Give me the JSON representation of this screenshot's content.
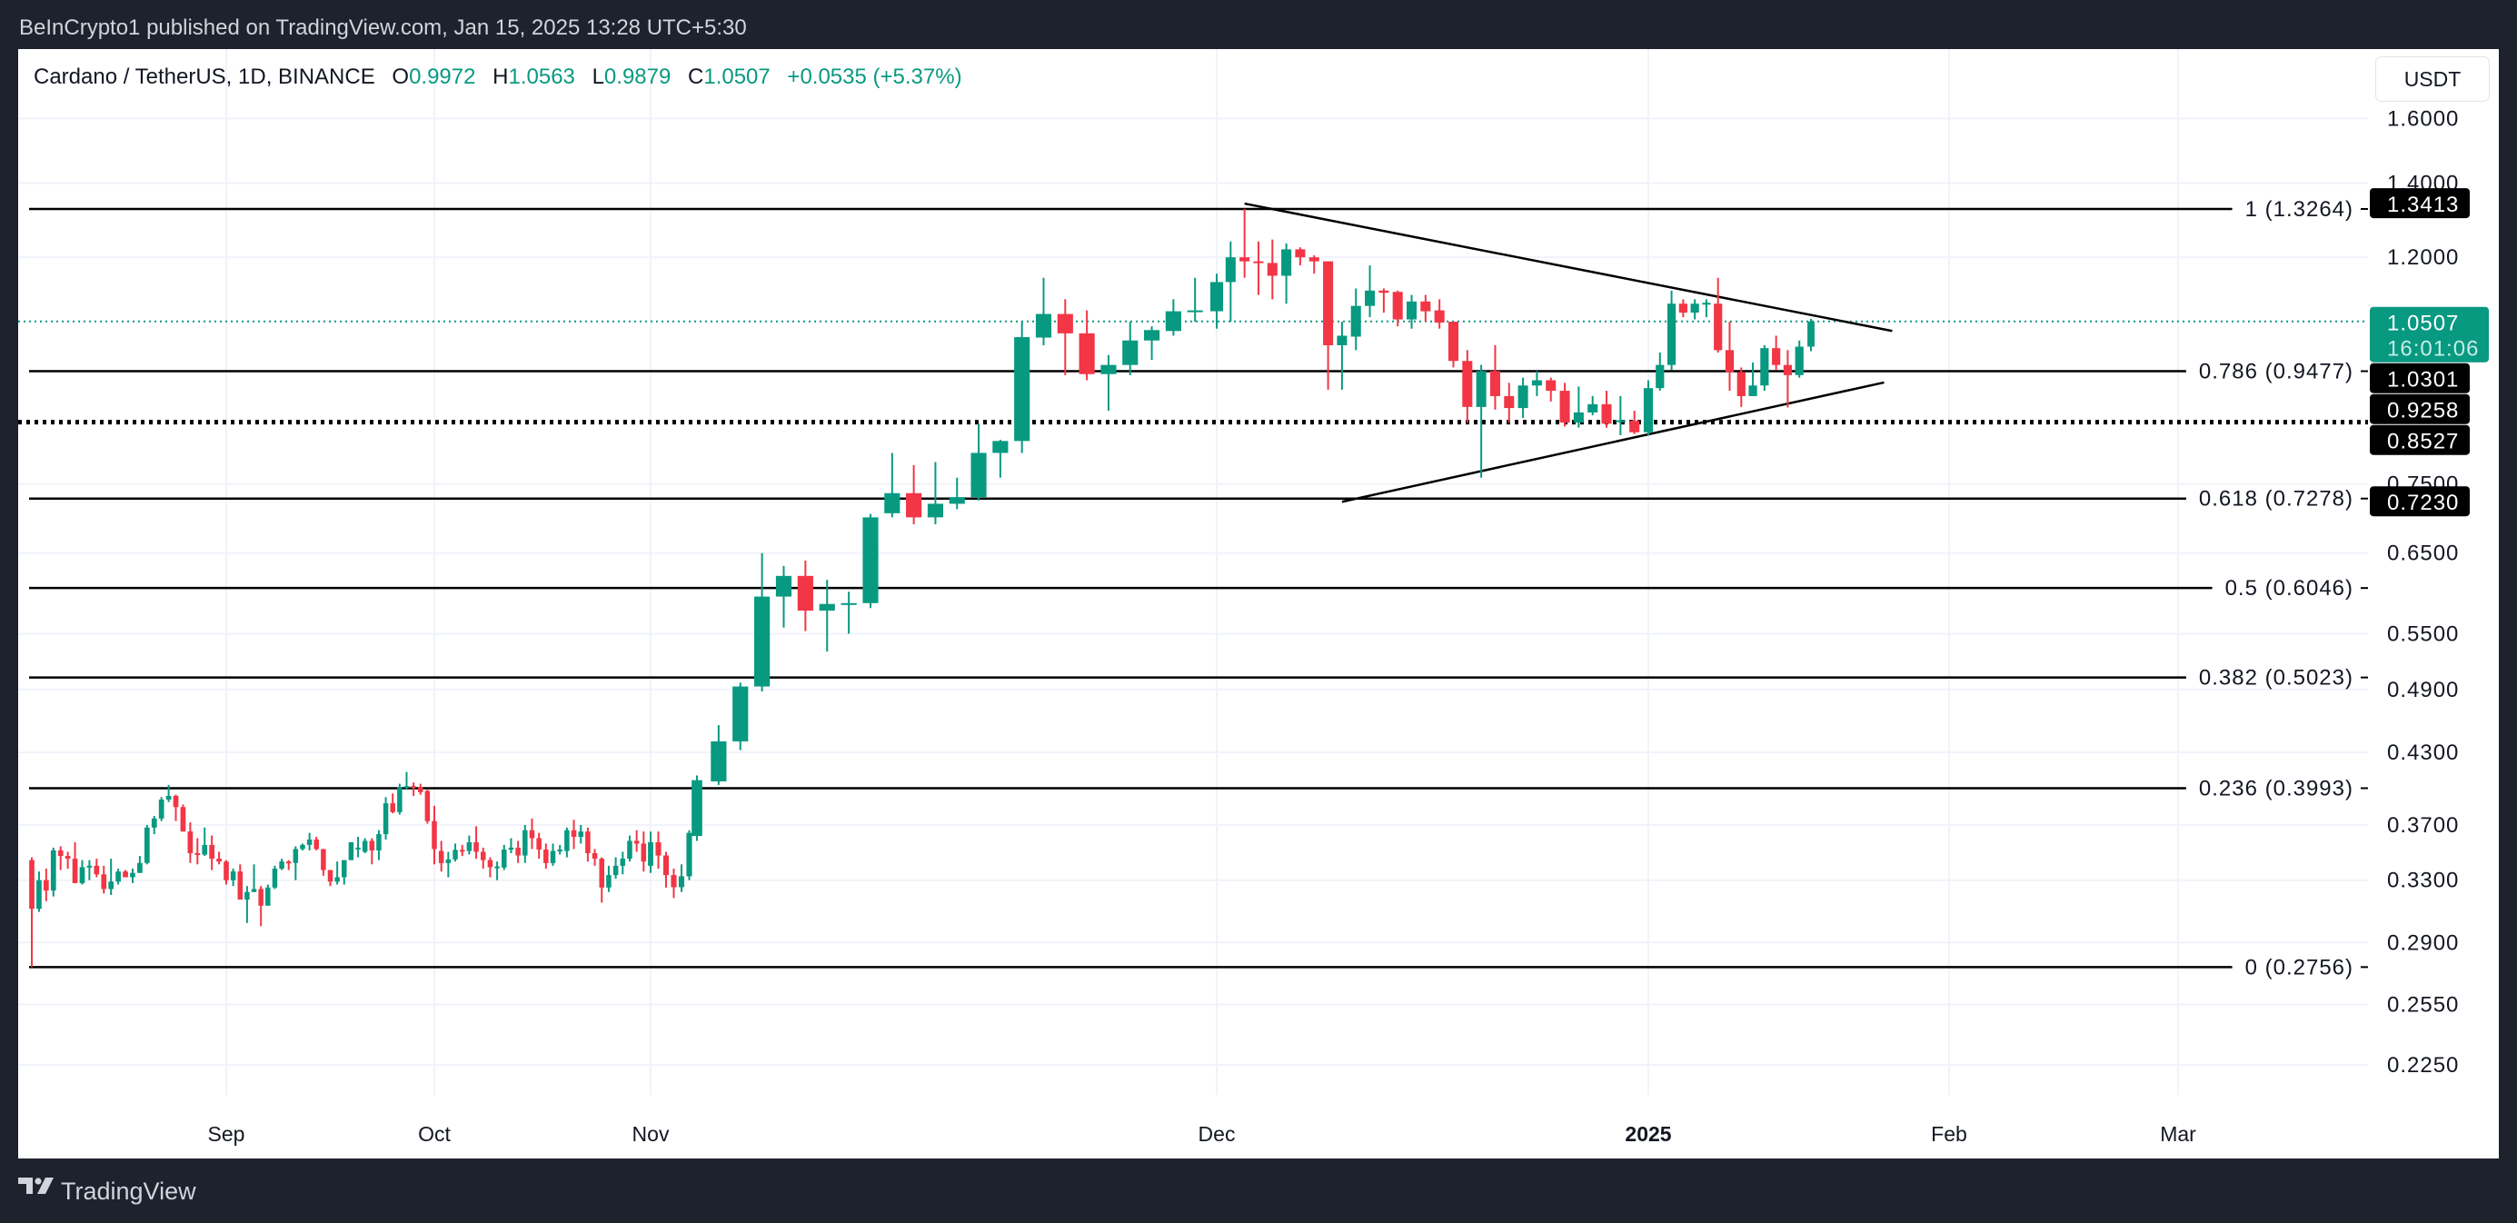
{
  "header": {
    "published": "BeInCrypto1 published on TradingView.com, Jan 15, 2025 13:28 UTC+5:30"
  },
  "legend": {
    "symbol": "Cardano / TetherUS, 1D, BINANCE",
    "o_label": "O",
    "o": "0.9972",
    "h_label": "H",
    "h": "1.0563",
    "l_label": "L",
    "l": "0.9879",
    "c_label": "C",
    "c": "1.0507",
    "change": "+0.0535 (+5.37%)"
  },
  "currency_button": "USDT",
  "footer": {
    "brand": "TradingView",
    "logo_icon": "tradingview-logo-icon"
  },
  "colors": {
    "up": "#089981",
    "down": "#F23645",
    "background": "#1e222d",
    "drawing": "#000000"
  },
  "chart_data": {
    "type": "candlestick",
    "interval": "1D",
    "y_scale": "log",
    "grid": true,
    "y_ticks": [
      "1.6000",
      "1.4000",
      "1.2000",
      "0.7500",
      "0.6500",
      "0.5500",
      "0.4900",
      "0.4300",
      "0.3700",
      "0.3300",
      "0.2900",
      "0.2550",
      "0.2250"
    ],
    "x_ticks": [
      {
        "label": "Sep",
        "date": "2024-09-01",
        "bold": false
      },
      {
        "label": "Oct",
        "date": "2024-10-01",
        "bold": false
      },
      {
        "label": "Nov",
        "date": "2024-11-01",
        "bold": false
      },
      {
        "label": "Dec",
        "date": "2024-12-01",
        "bold": false
      },
      {
        "label": "2025",
        "date": "2025-01-01",
        "bold": true
      },
      {
        "label": "Feb",
        "date": "2025-02-01",
        "bold": false
      },
      {
        "label": "Mar",
        "date": "2025-03-01",
        "bold": false
      }
    ],
    "candles_columns": [
      "date",
      "open",
      "high",
      "low",
      "close"
    ],
    "candles": [
      [
        "2024-08-05",
        0.344,
        0.346,
        0.2756,
        0.311
      ],
      [
        "2024-08-06",
        0.311,
        0.336,
        0.309,
        0.33
      ],
      [
        "2024-08-07",
        0.33,
        0.338,
        0.316,
        0.323
      ],
      [
        "2024-08-08",
        0.323,
        0.353,
        0.319,
        0.351
      ],
      [
        "2024-08-09",
        0.351,
        0.354,
        0.337,
        0.347
      ],
      [
        "2024-08-10",
        0.347,
        0.35,
        0.338,
        0.345
      ],
      [
        "2024-08-11",
        0.345,
        0.357,
        0.328,
        0.328
      ],
      [
        "2024-08-12",
        0.328,
        0.344,
        0.327,
        0.339
      ],
      [
        "2024-08-13",
        0.339,
        0.344,
        0.33,
        0.34
      ],
      [
        "2024-08-14",
        0.34,
        0.345,
        0.332,
        0.334
      ],
      [
        "2024-08-15",
        0.334,
        0.34,
        0.321,
        0.324
      ],
      [
        "2024-08-16",
        0.324,
        0.345,
        0.32,
        0.329
      ],
      [
        "2024-08-17",
        0.329,
        0.338,
        0.327,
        0.336
      ],
      [
        "2024-08-18",
        0.336,
        0.337,
        0.332,
        0.332
      ],
      [
        "2024-08-19",
        0.332,
        0.338,
        0.328,
        0.335
      ],
      [
        "2024-08-20",
        0.335,
        0.347,
        0.335,
        0.342
      ],
      [
        "2024-08-21",
        0.342,
        0.37,
        0.341,
        0.368
      ],
      [
        "2024-08-22",
        0.368,
        0.377,
        0.363,
        0.375
      ],
      [
        "2024-08-23",
        0.375,
        0.392,
        0.373,
        0.39
      ],
      [
        "2024-08-24",
        0.39,
        0.402,
        0.388,
        0.393
      ],
      [
        "2024-08-25",
        0.393,
        0.394,
        0.373,
        0.384
      ],
      [
        "2024-08-26",
        0.384,
        0.386,
        0.365,
        0.365
      ],
      [
        "2024-08-27",
        0.365,
        0.372,
        0.342,
        0.349
      ],
      [
        "2024-08-28",
        0.349,
        0.36,
        0.341,
        0.348
      ],
      [
        "2024-08-29",
        0.348,
        0.368,
        0.347,
        0.355
      ],
      [
        "2024-08-30",
        0.355,
        0.362,
        0.337,
        0.345
      ],
      [
        "2024-08-31",
        0.345,
        0.35,
        0.341,
        0.343
      ],
      [
        "2024-09-01",
        0.343,
        0.344,
        0.327,
        0.33
      ],
      [
        "2024-09-02",
        0.33,
        0.338,
        0.326,
        0.336
      ],
      [
        "2024-09-03",
        0.336,
        0.341,
        0.317,
        0.317
      ],
      [
        "2024-09-04",
        0.317,
        0.326,
        0.302,
        0.322
      ],
      [
        "2024-09-05",
        0.322,
        0.341,
        0.322,
        0.324
      ],
      [
        "2024-09-06",
        0.324,
        0.326,
        0.3,
        0.313
      ],
      [
        "2024-09-07",
        0.313,
        0.327,
        0.313,
        0.325
      ],
      [
        "2024-09-08",
        0.325,
        0.34,
        0.324,
        0.338
      ],
      [
        "2024-09-09",
        0.338,
        0.345,
        0.337,
        0.343
      ],
      [
        "2024-09-10",
        0.343,
        0.344,
        0.337,
        0.342
      ],
      [
        "2024-09-11",
        0.342,
        0.354,
        0.33,
        0.352
      ],
      [
        "2024-09-12",
        0.352,
        0.356,
        0.351,
        0.355
      ],
      [
        "2024-09-13",
        0.355,
        0.364,
        0.351,
        0.359
      ],
      [
        "2024-09-14",
        0.359,
        0.361,
        0.351,
        0.352
      ],
      [
        "2024-09-15",
        0.352,
        0.352,
        0.333,
        0.337
      ],
      [
        "2024-09-16",
        0.337,
        0.337,
        0.326,
        0.329
      ],
      [
        "2024-09-17",
        0.329,
        0.343,
        0.327,
        0.332
      ],
      [
        "2024-09-18",
        0.332,
        0.344,
        0.327,
        0.344
      ],
      [
        "2024-09-19",
        0.344,
        0.357,
        0.344,
        0.357
      ],
      [
        "2024-09-20",
        0.352,
        0.361,
        0.346,
        0.353
      ],
      [
        "2024-09-21",
        0.35,
        0.36,
        0.349,
        0.358
      ],
      [
        "2024-09-22",
        0.358,
        0.36,
        0.341,
        0.351
      ],
      [
        "2024-09-23",
        0.351,
        0.366,
        0.344,
        0.363
      ],
      [
        "2024-09-24",
        0.363,
        0.392,
        0.359,
        0.387
      ],
      [
        "2024-09-25",
        0.387,
        0.395,
        0.379,
        0.38
      ],
      [
        "2024-09-26",
        0.38,
        0.403,
        0.378,
        0.4
      ],
      [
        "2024-09-27",
        0.4,
        0.413,
        0.398,
        0.401
      ],
      [
        "2024-09-28",
        0.401,
        0.404,
        0.393,
        0.4
      ],
      [
        "2024-09-29",
        0.4,
        0.403,
        0.394,
        0.396
      ],
      [
        "2024-09-30",
        0.397,
        0.398,
        0.371,
        0.373
      ],
      [
        "2024-10-01",
        0.373,
        0.385,
        0.341,
        0.352
      ],
      [
        "2024-10-02",
        0.3506,
        0.358,
        0.336,
        0.3419
      ],
      [
        "2024-10-03",
        0.3419,
        0.35,
        0.332,
        0.3445
      ],
      [
        "2024-10-04",
        0.3445,
        0.356,
        0.343,
        0.3514
      ],
      [
        "2024-10-05",
        0.3514,
        0.355,
        0.347,
        0.3506
      ],
      [
        "2024-10-06",
        0.3506,
        0.362,
        0.348,
        0.357
      ],
      [
        "2024-10-07",
        0.357,
        0.369,
        0.345,
        0.35
      ],
      [
        "2024-10-08",
        0.35,
        0.353,
        0.338,
        0.344
      ],
      [
        "2024-10-09",
        0.344,
        0.346,
        0.332,
        0.339
      ],
      [
        "2024-10-10",
        0.339,
        0.343,
        0.33,
        0.3395
      ],
      [
        "2024-10-11",
        0.3387,
        0.355,
        0.337,
        0.3516
      ],
      [
        "2024-10-12",
        0.3516,
        0.36,
        0.349,
        0.353
      ],
      [
        "2024-10-13",
        0.353,
        0.358,
        0.342,
        0.3473
      ],
      [
        "2024-10-14",
        0.3473,
        0.37,
        0.342,
        0.366
      ],
      [
        "2024-10-15",
        0.366,
        0.375,
        0.352,
        0.36
      ],
      [
        "2024-10-16",
        0.36,
        0.364,
        0.345,
        0.3516
      ],
      [
        "2024-10-17",
        0.3516,
        0.356,
        0.338,
        0.3419
      ],
      [
        "2024-10-18",
        0.3419,
        0.356,
        0.34,
        0.3506
      ],
      [
        "2024-10-19",
        0.3506,
        0.355,
        0.348,
        0.3516
      ],
      [
        "2024-10-20",
        0.3506,
        0.368,
        0.346,
        0.366
      ],
      [
        "2024-10-21",
        0.366,
        0.374,
        0.352,
        0.361
      ],
      [
        "2024-10-22",
        0.361,
        0.37,
        0.356,
        0.365
      ],
      [
        "2024-10-23",
        0.365,
        0.368,
        0.343,
        0.349
      ],
      [
        "2024-10-24",
        0.349,
        0.352,
        0.34,
        0.345
      ],
      [
        "2024-10-25",
        0.345,
        0.346,
        0.315,
        0.325
      ],
      [
        "2024-10-26",
        0.325,
        0.34,
        0.322,
        0.3335
      ],
      [
        "2024-10-27",
        0.3335,
        0.346,
        0.331,
        0.34
      ],
      [
        "2024-10-28",
        0.34,
        0.35,
        0.334,
        0.345
      ],
      [
        "2024-10-29",
        0.345,
        0.362,
        0.343,
        0.358
      ],
      [
        "2024-10-30",
        0.358,
        0.366,
        0.35,
        0.356
      ],
      [
        "2024-10-31",
        0.356,
        0.365,
        0.336,
        0.343
      ],
      [
        "2024-11-01",
        0.34,
        0.365,
        0.335,
        0.357
      ],
      [
        "2024-11-02",
        0.357,
        0.365,
        0.338,
        0.3473
      ],
      [
        "2024-11-03",
        0.3473,
        0.35,
        0.325,
        0.3335
      ],
      [
        "2024-11-04",
        0.3335,
        0.338,
        0.318,
        0.3252
      ],
      [
        "2024-11-05",
        0.3252,
        0.341,
        0.322,
        0.3327
      ],
      [
        "2024-11-06",
        0.3327,
        0.366,
        0.33,
        0.364
      ],
      [
        "2024-11-07",
        0.3617,
        0.41,
        0.358,
        0.406
      ],
      [
        "2024-11-08",
        0.405,
        0.455,
        0.402,
        0.44
      ],
      [
        "2024-11-09",
        0.44,
        0.497,
        0.432,
        0.493
      ],
      [
        "2024-11-10",
        0.493,
        0.65,
        0.488,
        0.594
      ],
      [
        "2024-11-11",
        0.594,
        0.633,
        0.557,
        0.62
      ],
      [
        "2024-11-12",
        0.62,
        0.64,
        0.553,
        0.577
      ],
      [
        "2024-11-13",
        0.577,
        0.615,
        0.53,
        0.585
      ],
      [
        "2024-11-14",
        0.585,
        0.6,
        0.55,
        0.586
      ],
      [
        "2024-11-15",
        0.586,
        0.705,
        0.58,
        0.7
      ],
      [
        "2024-11-16",
        0.706,
        0.8,
        0.7,
        0.736
      ],
      [
        "2024-11-17",
        0.736,
        0.78,
        0.69,
        0.7
      ],
      [
        "2024-11-18",
        0.7,
        0.785,
        0.69,
        0.72
      ],
      [
        "2024-11-19",
        0.72,
        0.76,
        0.712,
        0.73
      ],
      [
        "2024-11-20",
        0.73,
        0.85,
        0.725,
        0.8
      ],
      [
        "2024-11-21",
        0.8,
        0.822,
        0.76,
        0.82
      ],
      [
        "2024-11-22",
        0.82,
        1.05,
        0.8,
        1.017
      ],
      [
        "2024-11-23",
        1.016,
        1.15,
        1.0,
        1.067
      ],
      [
        "2024-11-24",
        1.067,
        1.1,
        0.94,
        1.025
      ],
      [
        "2024-11-25",
        1.025,
        1.075,
        0.93,
        0.942
      ],
      [
        "2024-11-26",
        0.942,
        0.98,
        0.873,
        0.96
      ],
      [
        "2024-11-27",
        0.96,
        1.05,
        0.94,
        1.01
      ],
      [
        "2024-11-28",
        1.01,
        1.04,
        0.97,
        1.032
      ],
      [
        "2024-11-29",
        1.03,
        1.1,
        1.02,
        1.073
      ],
      [
        "2024-11-30",
        1.073,
        1.15,
        1.05,
        1.075
      ],
      [
        "2024-12-01",
        1.073,
        1.16,
        1.035,
        1.14
      ],
      [
        "2024-12-02",
        1.14,
        1.24,
        1.05,
        1.2
      ],
      [
        "2024-12-03",
        1.2,
        1.3264,
        1.15,
        1.19
      ],
      [
        "2024-12-04",
        1.19,
        1.24,
        1.11,
        1.188
      ],
      [
        "2024-12-05",
        1.186,
        1.245,
        1.1,
        1.155
      ],
      [
        "2024-12-06",
        1.155,
        1.235,
        1.09,
        1.22
      ],
      [
        "2024-12-07",
        1.22,
        1.225,
        1.18,
        1.2
      ],
      [
        "2024-12-08",
        1.2,
        1.205,
        1.16,
        1.19
      ],
      [
        "2024-12-09",
        1.19,
        1.19,
        0.912,
        1.0
      ],
      [
        "2024-12-10",
        1.0,
        1.05,
        0.912,
        1.02
      ],
      [
        "2024-12-11",
        1.018,
        1.125,
        0.99,
        1.085
      ],
      [
        "2024-12-12",
        1.085,
        1.18,
        1.06,
        1.12
      ],
      [
        "2024-12-13",
        1.12,
        1.125,
        1.07,
        1.115
      ],
      [
        "2024-12-14",
        1.117,
        1.12,
        1.04,
        1.055
      ],
      [
        "2024-12-15",
        1.055,
        1.11,
        1.035,
        1.095
      ],
      [
        "2024-12-16",
        1.095,
        1.11,
        1.05,
        1.073
      ],
      [
        "2024-12-17",
        1.075,
        1.1,
        1.035,
        1.048
      ],
      [
        "2024-12-18",
        1.05,
        1.05,
        0.955,
        0.968
      ],
      [
        "2024-12-19",
        0.968,
        0.99,
        0.852,
        0.88
      ],
      [
        "2024-12-20",
        0.88,
        0.96,
        0.76,
        0.948
      ],
      [
        "2024-12-21",
        0.948,
        1.0,
        0.875,
        0.9
      ],
      [
        "2024-12-22",
        0.9,
        0.925,
        0.852,
        0.878
      ],
      [
        "2024-12-23",
        0.878,
        0.935,
        0.86,
        0.92
      ],
      [
        "2024-12-24",
        0.92,
        0.948,
        0.9,
        0.93
      ],
      [
        "2024-12-25",
        0.93,
        0.935,
        0.89,
        0.91
      ],
      [
        "2024-12-26",
        0.91,
        0.925,
        0.845,
        0.852
      ],
      [
        "2024-12-27",
        0.852,
        0.918,
        0.843,
        0.87
      ],
      [
        "2024-12-28",
        0.87,
        0.9,
        0.865,
        0.885
      ],
      [
        "2024-12-29",
        0.885,
        0.91,
        0.843,
        0.85
      ],
      [
        "2024-12-30",
        0.854,
        0.9,
        0.83,
        0.856
      ],
      [
        "2024-12-31",
        0.855,
        0.873,
        0.832,
        0.835
      ],
      [
        "2025-01-01",
        0.835,
        0.93,
        0.83,
        0.915
      ],
      [
        "2025-01-02",
        0.915,
        0.985,
        0.91,
        0.96
      ],
      [
        "2025-01-03",
        0.96,
        1.12,
        0.95,
        1.09
      ],
      [
        "2025-01-04",
        1.09,
        1.1,
        1.06,
        1.07
      ],
      [
        "2025-01-05",
        1.07,
        1.1,
        1.055,
        1.09
      ],
      [
        "2025-01-06",
        1.09,
        1.1,
        1.06,
        1.092
      ],
      [
        "2025-01-07",
        1.09,
        1.15,
        0.985,
        0.99
      ],
      [
        "2025-01-08",
        0.99,
        1.05,
        0.91,
        0.946
      ],
      [
        "2025-01-09",
        0.946,
        0.955,
        0.88,
        0.9
      ],
      [
        "2025-01-10",
        0.9,
        0.965,
        0.9,
        0.92
      ],
      [
        "2025-01-11",
        0.92,
        1.0,
        0.91,
        0.994
      ],
      [
        "2025-01-12",
        0.994,
        1.02,
        0.95,
        0.96
      ],
      [
        "2025-01-13",
        0.96,
        0.99,
        0.879,
        0.94
      ],
      [
        "2025-01-14",
        0.94,
        1.01,
        0.935,
        0.9972
      ],
      [
        "2025-01-15",
        0.9972,
        1.0563,
        0.9879,
        1.0507
      ]
    ],
    "fib_levels": [
      {
        "label": "1 (1.3264)",
        "price": 1.3264
      },
      {
        "label": "0.786 (0.9477)",
        "price": 0.9477
      },
      {
        "label": "0.618 (0.7278)",
        "price": 0.7278
      },
      {
        "label": "0.5 (0.6046)",
        "price": 0.6046
      },
      {
        "label": "0.382 (0.5023)",
        "price": 0.5023
      },
      {
        "label": "0.236 (0.3993)",
        "price": 0.3993
      },
      {
        "label": "0 (0.2756)",
        "price": 0.2756
      }
    ],
    "horizontal_line": {
      "price": 0.8527,
      "style": "dotted"
    },
    "trendlines": [
      {
        "from": {
          "date": "2024-12-03",
          "price": 1.3413
        },
        "to": {
          "date": "2025-01-25",
          "price": 1.0301
        }
      },
      {
        "from": {
          "date": "2024-12-10",
          "price": 0.723
        },
        "to": {
          "date": "2025-01-24",
          "price": 0.9258
        }
      }
    ],
    "price_labels": [
      {
        "text": "1.3413",
        "price": 1.3413
      },
      {
        "text": "1.0301",
        "price": 1.0301
      },
      {
        "text": "0.9258",
        "price": 0.9258
      },
      {
        "text": "0.8527",
        "price": 0.8527
      },
      {
        "text": "0.7230",
        "price": 0.723
      }
    ],
    "last_price": {
      "text": "1.0507",
      "price": 1.0507,
      "countdown": "16:01:06"
    }
  }
}
